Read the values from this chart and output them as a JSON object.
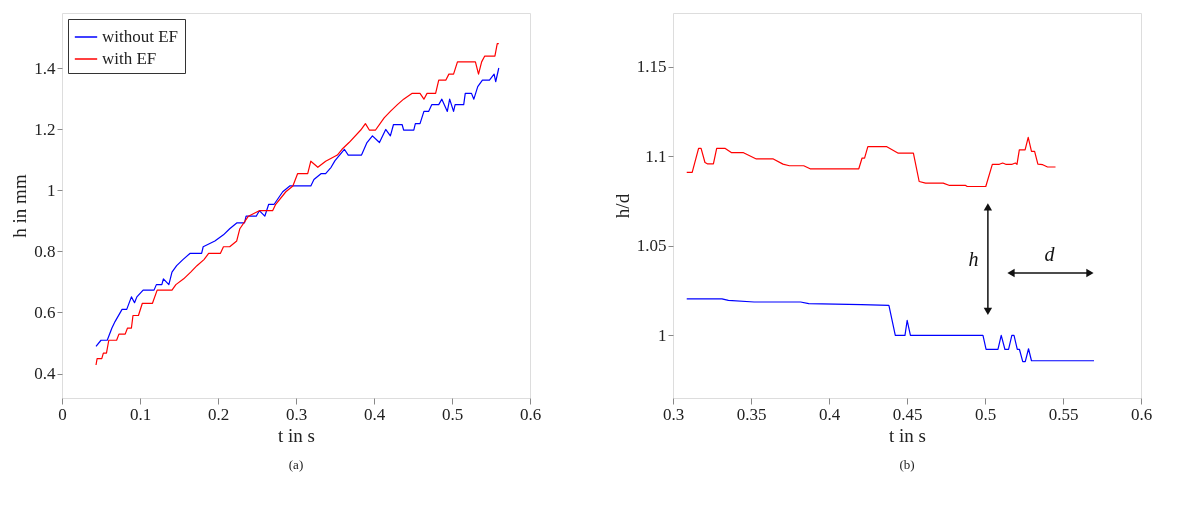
{
  "chart_data": [
    {
      "type": "line",
      "xlabel": "t in s",
      "ylabel": "h in mm",
      "xlim": [
        0,
        0.6
      ],
      "ylim": [
        0.32,
        1.58
      ],
      "xticks": [
        0,
        0.1,
        0.2,
        0.3,
        0.4,
        0.5,
        0.6
      ],
      "yticks": [
        0.4,
        0.6,
        0.8,
        1,
        1.2,
        1.4
      ],
      "grid": false,
      "legend": "top left",
      "annotations": [
        "(a)"
      ],
      "series": [
        {
          "name": "without EF",
          "color": "#0000ff",
          "x": [
            0.0436,
            0.05,
            0.058,
            0.064,
            0.068,
            0.077,
            0.083,
            0.089,
            0.093,
            0.096,
            0.104,
            0.118,
            0.121,
            0.128,
            0.13,
            0.137,
            0.141,
            0.147,
            0.155,
            0.164,
            0.179,
            0.181,
            0.196,
            0.207,
            0.215,
            0.224,
            0.234,
            0.236,
            0.249,
            0.253,
            0.26,
            0.265,
            0.272,
            0.283,
            0.292,
            0.319,
            0.323,
            0.332,
            0.338,
            0.345,
            0.35,
            0.362,
            0.367,
            0.384,
            0.391,
            0.398,
            0.407,
            0.415,
            0.421,
            0.425,
            0.436,
            0.438,
            0.451,
            0.453,
            0.459,
            0.464,
            0.47,
            0.474,
            0.483,
            0.487,
            0.494,
            0.497,
            0.502,
            0.504,
            0.515,
            0.517,
            0.525,
            0.528,
            0.533,
            0.539,
            0.548,
            0.554,
            0.556,
            0.56
          ],
          "values": [
            0.489,
            0.509,
            0.509,
            0.549,
            0.57,
            0.61,
            0.61,
            0.651,
            0.632,
            0.651,
            0.673,
            0.673,
            0.691,
            0.691,
            0.71,
            0.691,
            0.732,
            0.753,
            0.773,
            0.793,
            0.793,
            0.815,
            0.834,
            0.854,
            0.874,
            0.893,
            0.893,
            0.915,
            0.915,
            0.933,
            0.915,
            0.954,
            0.954,
            0.995,
            1.014,
            1.014,
            1.035,
            1.054,
            1.054,
            1.075,
            1.097,
            1.134,
            1.115,
            1.115,
            1.156,
            1.178,
            1.156,
            1.199,
            1.178,
            1.215,
            1.215,
            1.197,
            1.197,
            1.218,
            1.218,
            1.258,
            1.258,
            1.28,
            1.28,
            1.298,
            1.258,
            1.298,
            1.258,
            1.28,
            1.28,
            1.317,
            1.317,
            1.298,
            1.339,
            1.36,
            1.36,
            1.38,
            1.355,
            1.4
          ]
        },
        {
          "name": "with EF",
          "color": "#ff0000",
          "x": [
            0.0436,
            0.045,
            0.051,
            0.053,
            0.057,
            0.06,
            0.07,
            0.073,
            0.081,
            0.084,
            0.089,
            0.091,
            0.098,
            0.103,
            0.109,
            0.116,
            0.122,
            0.141,
            0.146,
            0.156,
            0.165,
            0.173,
            0.182,
            0.188,
            0.203,
            0.207,
            0.215,
            0.224,
            0.228,
            0.239,
            0.253,
            0.27,
            0.274,
            0.287,
            0.296,
            0.302,
            0.315,
            0.319,
            0.328,
            0.338,
            0.353,
            0.359,
            0.368,
            0.383,
            0.389,
            0.394,
            0.402,
            0.413,
            0.421,
            0.43,
            0.438,
            0.449,
            0.459,
            0.464,
            0.468,
            0.479,
            0.483,
            0.492,
            0.496,
            0.502,
            0.507,
            0.521,
            0.53,
            0.534,
            0.538,
            0.542,
            0.548,
            0.555,
            0.558,
            0.56
          ],
          "values": [
            0.428,
            0.449,
            0.449,
            0.467,
            0.467,
            0.509,
            0.509,
            0.529,
            0.529,
            0.549,
            0.549,
            0.59,
            0.59,
            0.63,
            0.63,
            0.63,
            0.673,
            0.673,
            0.691,
            0.71,
            0.732,
            0.753,
            0.773,
            0.793,
            0.793,
            0.815,
            0.815,
            0.834,
            0.874,
            0.915,
            0.933,
            0.933,
            0.954,
            0.995,
            1.014,
            1.054,
            1.054,
            1.095,
            1.075,
            1.095,
            1.115,
            1.134,
            1.156,
            1.197,
            1.218,
            1.197,
            1.197,
            1.237,
            1.258,
            1.28,
            1.298,
            1.317,
            1.317,
            1.298,
            1.317,
            1.317,
            1.36,
            1.36,
            1.38,
            1.38,
            1.42,
            1.42,
            1.42,
            1.38,
            1.42,
            1.439,
            1.439,
            1.439,
            1.48,
            1.48
          ]
        }
      ]
    },
    {
      "type": "line",
      "xlabel": "t in s",
      "ylabel": "h/d",
      "xlim": [
        0.3,
        0.6
      ],
      "ylim": [
        0.965,
        1.18
      ],
      "xticks": [
        0.3,
        0.35,
        0.4,
        0.45,
        0.5,
        0.55,
        0.6
      ],
      "yticks": [
        1,
        1.05,
        1.1,
        1.15
      ],
      "grid": false,
      "legend": "top left",
      "annotations": [
        "h",
        "d",
        "(b)"
      ],
      "series": [
        {
          "name": "without EF",
          "color": "#0000ff",
          "x": [
            0.3088,
            0.3314,
            0.3355,
            0.352,
            0.3818,
            0.387,
            0.4209,
            0.4384,
            0.4425,
            0.4487,
            0.4501,
            0.4522,
            0.4987,
            0.5007,
            0.5083,
            0.5104,
            0.5128,
            0.5151,
            0.5172,
            0.5186,
            0.5207,
            0.5221,
            0.5242,
            0.5258,
            0.5279,
            0.5298,
            0.5442,
            0.5699
          ],
          "values": [
            1.0204,
            1.0204,
            1.0195,
            1.0186,
            1.0186,
            1.0177,
            1.0171,
            1.0167,
            1.0,
            1.0,
            1.0083,
            1.0,
            1.0,
            0.9921,
            0.9921,
            1.0,
            0.9921,
            0.9921,
            1.0,
            1.0,
            0.9921,
            0.9921,
            0.9853,
            0.9853,
            0.9925,
            0.9858,
            0.9858,
            0.9858
          ]
        },
        {
          "name": "with EF",
          "color": "#ff0000",
          "x": [
            0.3088,
            0.3123,
            0.3164,
            0.318,
            0.3205,
            0.322,
            0.3259,
            0.328,
            0.3335,
            0.3376,
            0.3452,
            0.3534,
            0.3643,
            0.3705,
            0.3746,
            0.3838,
            0.3879,
            0.4191,
            0.4212,
            0.4228,
            0.4249,
            0.4368,
            0.4444,
            0.4541,
            0.4578,
            0.4619,
            0.4732,
            0.4773,
            0.4876,
            0.4886,
            0.5005,
            0.5047,
            0.5092,
            0.5113,
            0.5133,
            0.5174,
            0.5195,
            0.5205,
            0.522,
            0.5257,
            0.5277,
            0.5298,
            0.5318,
            0.5339,
            0.537,
            0.5401,
            0.5452
          ],
          "values": [
            1.091,
            1.091,
            1.1044,
            1.1044,
            1.0965,
            1.0958,
            1.0958,
            1.1044,
            1.1044,
            1.102,
            1.102,
            1.0985,
            1.0985,
            1.0956,
            1.0947,
            1.0947,
            1.093,
            1.093,
            1.099,
            1.099,
            1.1054,
            1.1054,
            1.1017,
            1.1017,
            1.0859,
            1.085,
            1.085,
            1.0837,
            1.0837,
            1.0831,
            1.0831,
            1.0955,
            1.0955,
            1.0962,
            1.0955,
            1.0955,
            1.0962,
            1.0955,
            1.1036,
            1.1036,
            1.1105,
            1.1027,
            1.1027,
            1.0956,
            1.0953,
            1.094,
            1.094
          ]
        }
      ]
    }
  ]
}
